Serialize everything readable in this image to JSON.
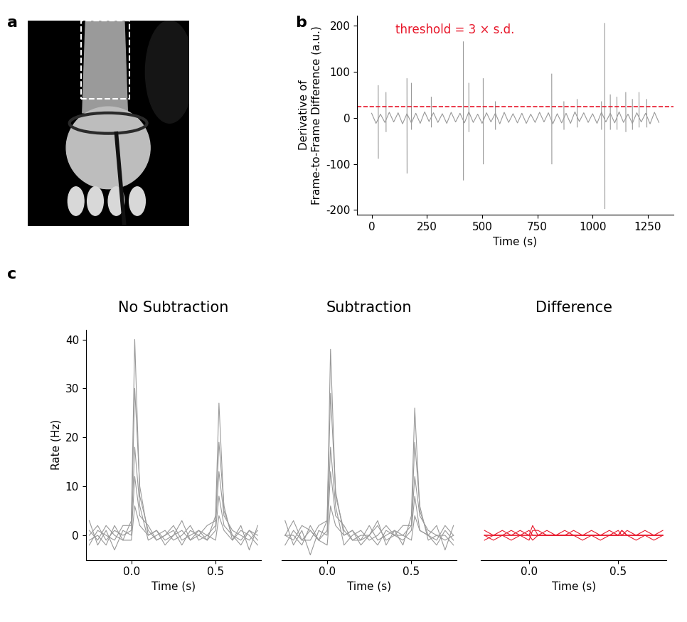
{
  "chart_data": [
    {
      "panel": "a",
      "type": "image"
    },
    {
      "panel": "b",
      "type": "line",
      "ylabel": "Derivative of\nFrame-to-Frame Difference (a.u.)",
      "xlabel": "Time (s)",
      "xlim": [
        -65,
        1365
      ],
      "xticks": [
        0,
        250,
        500,
        750,
        1000,
        1250
      ],
      "ylim": [
        -210,
        222
      ],
      "yticks": [
        -200,
        -100,
        0,
        100,
        200
      ],
      "threshold": {
        "value": 25,
        "label": "threshold = 3 × s.d.",
        "color": "#e8192c",
        "line_style": "dashed"
      },
      "series": [
        {
          "color": "#999999",
          "x": [
            0,
            20,
            40,
            60,
            80,
            100,
            120,
            140,
            160,
            180,
            200,
            220,
            240,
            260,
            280,
            300,
            320,
            340,
            360,
            380,
            400,
            420,
            440,
            460,
            480,
            500,
            520,
            540,
            560,
            580,
            600,
            620,
            640,
            660,
            680,
            700,
            720,
            740,
            760,
            780,
            800,
            820,
            840,
            860,
            880,
            900,
            920,
            940,
            960,
            980,
            1000,
            1020,
            1040,
            1060,
            1080,
            1100,
            1120,
            1140,
            1160,
            1180,
            1200,
            1220,
            1240,
            1260,
            1280,
            1300
          ],
          "values": [
            10,
            -12,
            8,
            -10,
            12,
            -9,
            11,
            -13,
            9,
            -11,
            10,
            -12,
            13,
            -8,
            11,
            -10,
            9,
            -12,
            12,
            -9,
            10,
            -11,
            13,
            -10,
            8,
            -12,
            11,
            -9,
            10,
            -13,
            12,
            -10,
            9,
            -11,
            10,
            -12,
            8,
            -10,
            12,
            -9,
            11,
            -13,
            9,
            -11,
            10,
            -12,
            13,
            -8,
            11,
            -10,
            9,
            -12,
            12,
            -9,
            10,
            -11,
            13,
            -10,
            8,
            -12,
            11,
            -9,
            10,
            -13,
            12,
            -10
          ]
        },
        {
          "color": "#999999",
          "x": [
            30,
            30.5,
            31,
            65,
            65.5,
            66,
            160,
            160.5,
            161,
            180,
            180.5,
            181,
            270,
            270.5,
            271,
            415,
            415.5,
            416,
            440,
            440.5,
            441,
            505,
            505.5,
            506,
            560,
            560.5,
            561,
            815,
            815.5,
            816,
            870,
            870.5,
            871,
            930,
            930.5,
            931,
            1040,
            1040.5,
            1041,
            1055,
            1055.5,
            1056,
            1080,
            1080.5,
            1081,
            1110,
            1110.5,
            1111,
            1150,
            1150.5,
            1151,
            1180,
            1180.5,
            1181,
            1210,
            1210.5,
            1211,
            1245,
            1245.5,
            1246
          ],
          "values": [
            70,
            -88,
            null,
            55,
            -30,
            null,
            85,
            -120,
            null,
            75,
            -25,
            null,
            45,
            -20,
            null,
            165,
            -135,
            null,
            75,
            -30,
            null,
            85,
            -100,
            null,
            35,
            -25,
            null,
            95,
            -100,
            null,
            35,
            -25,
            null,
            40,
            -20,
            null,
            35,
            -25,
            null,
            205,
            -197,
            null,
            50,
            -25,
            null,
            45,
            -25,
            null,
            55,
            -30,
            null,
            40,
            -25,
            null,
            55,
            -20,
            null,
            40,
            -20,
            null
          ]
        }
      ]
    },
    {
      "panel": "c",
      "type": "line",
      "title": "No Subtraction",
      "xlabel": "Time (s)",
      "ylabel": "Rate (Hz)",
      "xlim": [
        -0.27,
        0.77
      ],
      "xticks": [
        {
          "value": 0,
          "label": "0.0"
        },
        {
          "value": 0.5,
          "label": "0.5"
        }
      ],
      "ylim": [
        -5,
        42
      ],
      "yticks": [
        0,
        10,
        20,
        30,
        40
      ],
      "x": [
        -0.25,
        -0.2,
        -0.15,
        -0.1,
        -0.05,
        0,
        0.02,
        0.05,
        0.1,
        0.15,
        0.2,
        0.25,
        0.3,
        0.35,
        0.4,
        0.45,
        0.5,
        0.52,
        0.55,
        0.6,
        0.65,
        0.7,
        0.75
      ],
      "series": [
        {
          "color": "#999999",
          "values": [
            1,
            -1,
            2,
            0,
            -1,
            3,
            40,
            8,
            1,
            -1,
            0,
            2,
            -1,
            0,
            1,
            -1,
            4,
            27,
            5,
            0,
            -1,
            1,
            0
          ]
        },
        {
          "color": "#999999",
          "values": [
            -2,
            1,
            0,
            -1,
            2,
            2,
            30,
            10,
            0,
            1,
            -2,
            0,
            1,
            -1,
            0,
            2,
            3,
            19,
            6,
            -1,
            1,
            0,
            -2
          ]
        },
        {
          "color": "#999999",
          "values": [
            0,
            2,
            -1,
            1,
            0,
            1,
            18,
            6,
            -1,
            0,
            1,
            -1,
            0,
            2,
            -1,
            0,
            2,
            13,
            4,
            1,
            0,
            -1,
            1
          ]
        },
        {
          "color": "#999999",
          "values": [
            3,
            -2,
            1,
            -3,
            1,
            0,
            12,
            4,
            2,
            -1,
            0,
            1,
            -2,
            1,
            0,
            -1,
            1,
            8,
            2,
            0,
            -2,
            1,
            -1
          ]
        },
        {
          "color": "#999999",
          "values": [
            -1,
            0,
            -2,
            2,
            -1,
            -1,
            6,
            2,
            0,
            1,
            -1,
            0,
            3,
            -1,
            1,
            0,
            -1,
            4,
            1,
            -1,
            2,
            -3,
            2
          ]
        }
      ]
    },
    {
      "panel": "c",
      "type": "line",
      "title": "Subtraction",
      "xlabel": "Time (s)",
      "tick_labels": "x",
      "xlim": [
        -0.27,
        0.77
      ],
      "xticks": [
        {
          "value": 0,
          "label": "0.0"
        },
        {
          "value": 0.5,
          "label": "0.5"
        }
      ],
      "ylim": [
        -5,
        42
      ],
      "x": [
        -0.25,
        -0.2,
        -0.15,
        -0.1,
        -0.05,
        0,
        0.02,
        0.05,
        0.1,
        0.15,
        0.2,
        0.25,
        0.3,
        0.35,
        0.4,
        0.45,
        0.5,
        0.52,
        0.55,
        0.6,
        0.65,
        0.7,
        0.75
      ],
      "series": [
        {
          "color": "#999999",
          "values": [
            0,
            -1,
            2,
            1,
            -1,
            3,
            38,
            8,
            1,
            -1,
            -1,
            2,
            -1,
            0,
            1,
            -2,
            4,
            26,
            5,
            0,
            -1,
            2,
            0
          ]
        },
        {
          "color": "#999999",
          "values": [
            -2,
            1,
            -1,
            -1,
            2,
            3,
            29,
            9,
            0,
            1,
            -2,
            0,
            2,
            -1,
            0,
            2,
            2,
            19,
            6,
            -1,
            0,
            0,
            -2
          ]
        },
        {
          "color": "#999999",
          "values": [
            0,
            3,
            -1,
            1,
            -1,
            1,
            18,
            6,
            -2,
            0,
            1,
            -1,
            0,
            2,
            0,
            0,
            2,
            12,
            4,
            1,
            0,
            -1,
            0
          ]
        },
        {
          "color": "#999999",
          "values": [
            3,
            -2,
            1,
            -4,
            1,
            0,
            13,
            4,
            2,
            -1,
            0,
            0,
            -2,
            1,
            0,
            -1,
            1,
            8,
            1,
            0,
            -2,
            1,
            -1
          ]
        },
        {
          "color": "#999999",
          "values": [
            0,
            0,
            -2,
            2,
            -1,
            -2,
            6,
            2,
            0,
            1,
            -1,
            0,
            3,
            -2,
            1,
            0,
            -1,
            4,
            1,
            0,
            2,
            -3,
            2
          ]
        }
      ]
    },
    {
      "panel": "c",
      "type": "line",
      "title": "Difference",
      "xlabel": "Time (s)",
      "tick_labels": "x",
      "xlim": [
        -0.27,
        0.77
      ],
      "xticks": [
        {
          "value": 0,
          "label": "0.0"
        },
        {
          "value": 0.5,
          "label": "0.5"
        }
      ],
      "ylim": [
        -5,
        42
      ],
      "x": [
        -0.25,
        -0.2,
        -0.15,
        -0.1,
        -0.05,
        0,
        0.02,
        0.05,
        0.1,
        0.15,
        0.2,
        0.25,
        0.3,
        0.35,
        0.4,
        0.45,
        0.5,
        0.52,
        0.55,
        0.6,
        0.65,
        0.7,
        0.75
      ],
      "series": [
        {
          "color": "#e8192c",
          "values": [
            1,
            0,
            0,
            -1,
            0,
            0,
            2,
            0,
            0,
            0,
            1,
            0,
            0,
            0,
            0,
            1,
            0,
            1,
            0,
            0,
            0,
            -1,
            0
          ]
        },
        {
          "color": "#e8192c",
          "values": [
            0,
            0,
            1,
            0,
            0,
            -1,
            1,
            1,
            0,
            0,
            0,
            0,
            -1,
            0,
            0,
            0,
            1,
            0,
            0,
            0,
            1,
            0,
            0
          ]
        },
        {
          "color": "#e8192c",
          "values": [
            0,
            -1,
            0,
            0,
            1,
            0,
            0,
            0,
            1,
            0,
            0,
            0,
            0,
            0,
            -1,
            0,
            0,
            1,
            0,
            0,
            0,
            0,
            1
          ]
        },
        {
          "color": "#e8192c",
          "values": [
            0,
            0,
            0,
            1,
            0,
            0,
            -1,
            0,
            0,
            0,
            0,
            1,
            0,
            0,
            0,
            0,
            0,
            0,
            1,
            0,
            0,
            0,
            0
          ]
        },
        {
          "color": "#e8192c",
          "values": [
            -1,
            0,
            0,
            0,
            0,
            1,
            0,
            0,
            0,
            0,
            0,
            0,
            0,
            1,
            0,
            0,
            0,
            0,
            0,
            -1,
            0,
            0,
            0
          ]
        }
      ]
    }
  ]
}
